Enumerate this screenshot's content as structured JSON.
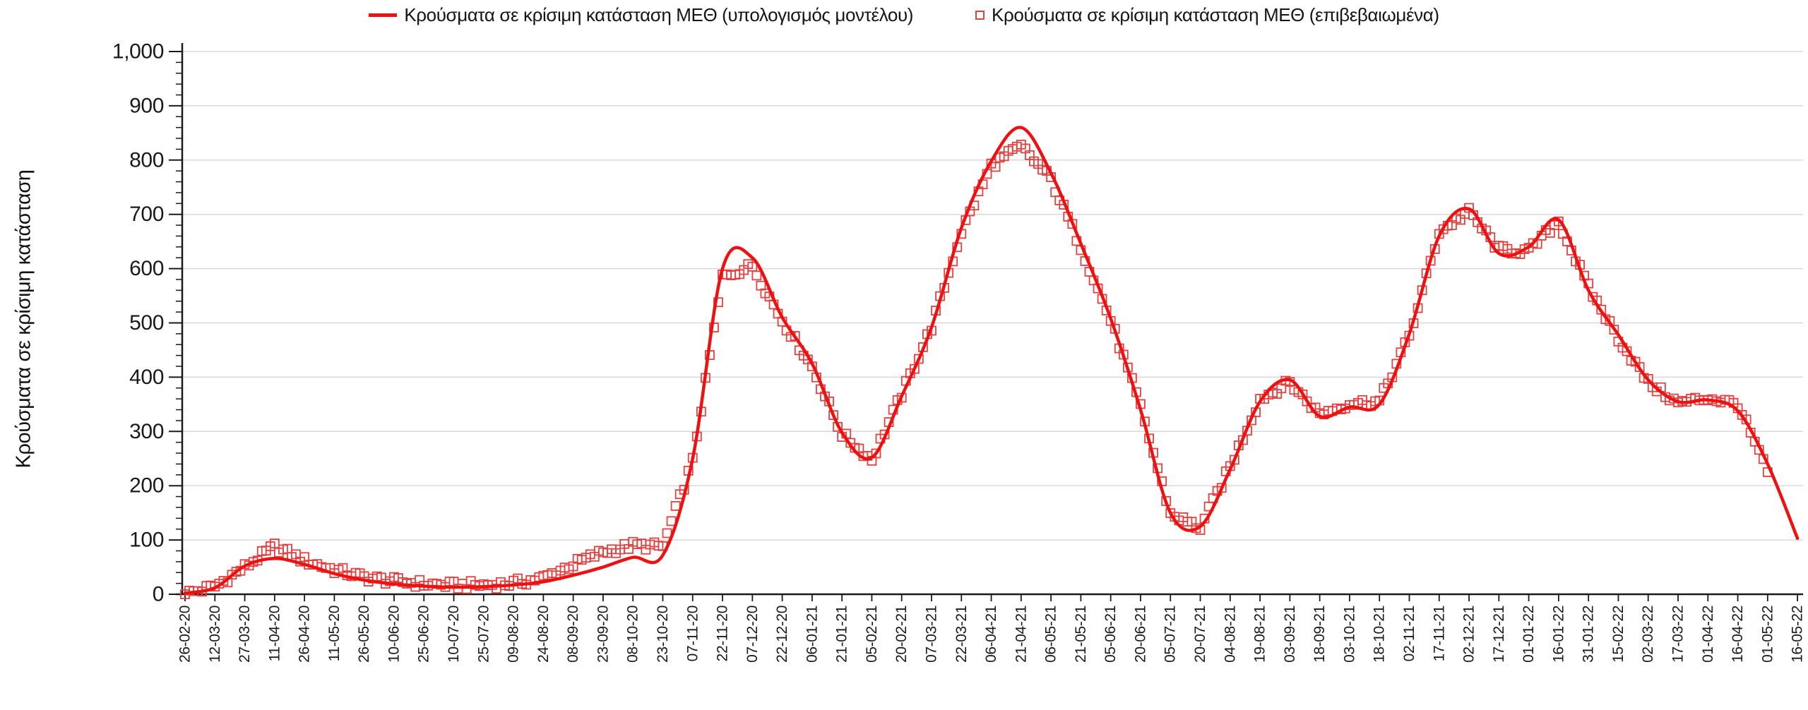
{
  "legend": {
    "model_label": "Κρούσματα σε κρίσιμη κατάσταση ΜΕΘ (υπολογισμός μοντέλου)",
    "confirmed_label": "Κρούσματα σε κρίσιμη κατάσταση ΜΕΘ (επιβεβαιωμένα)"
  },
  "y_axis": {
    "title": "Κρούσματα σε κρίσιμη κατάσταση",
    "tick_labels": [
      "0",
      "100",
      "200",
      "300",
      "400",
      "500",
      "600",
      "700",
      "800",
      "900",
      "1,000"
    ]
  },
  "colors": {
    "model_line": "#ee1111",
    "confirmed_marker": "#e34040",
    "gridline": "#d9d9d9",
    "axis": "#1a1a1a",
    "tick_text": "#1a1a1a"
  },
  "chart_data": {
    "type": "line",
    "title": "",
    "xlabel": "",
    "ylabel": "Κρούσματα σε κρίσιμη κατάσταση",
    "ylim": [
      0,
      1000
    ],
    "y_major_step": 100,
    "y_minor_step": 20,
    "grid": "horizontal",
    "legend_position": "top",
    "categories": [
      "26-02-20",
      "12-03-20",
      "27-03-20",
      "11-04-20",
      "26-04-20",
      "11-05-20",
      "26-05-20",
      "10-06-20",
      "25-06-20",
      "10-07-20",
      "25-07-20",
      "09-08-20",
      "24-08-20",
      "08-09-20",
      "23-09-20",
      "08-10-20",
      "23-10-20",
      "07-11-20",
      "22-11-20",
      "07-12-20",
      "22-12-20",
      "06-01-21",
      "21-01-21",
      "05-02-21",
      "20-02-21",
      "07-03-21",
      "22-03-21",
      "06-04-21",
      "21-04-21",
      "06-05-21",
      "21-05-21",
      "05-06-21",
      "20-06-21",
      "05-07-21",
      "20-07-21",
      "04-08-21",
      "19-08-21",
      "03-09-21",
      "18-09-21",
      "03-10-21",
      "18-10-21",
      "02-11-21",
      "17-11-21",
      "02-12-21",
      "17-12-21",
      "01-01-22",
      "16-01-22",
      "31-01-22",
      "15-02-22",
      "02-03-22",
      "17-03-22",
      "01-04-22",
      "16-04-22",
      "01-05-22",
      "16-05-22"
    ],
    "series": [
      {
        "name": "Κρούσματα σε κρίσιμη κατάσταση ΜΕΘ (υπολογισμός μοντέλου)",
        "style": "line",
        "color": "#ee1111",
        "values": [
          2,
          12,
          52,
          66,
          55,
          38,
          26,
          19,
          15,
          13,
          14,
          17,
          23,
          35,
          50,
          68,
          72,
          250,
          600,
          620,
          510,
          425,
          298,
          252,
          365,
          492,
          675,
          798,
          860,
          776,
          646,
          508,
          340,
          150,
          125,
          230,
          355,
          395,
          328,
          345,
          350,
          480,
          660,
          710,
          628,
          640,
          690,
          560,
          478,
          395,
          355,
          358,
          338,
          240,
          103
        ]
      },
      {
        "name": "Κρούσματα σε κρίσιμη κατάσταση ΜΕΘ (επιβεβαιωμένα)",
        "style": "square-markers",
        "color": "#e34040",
        "values": [
          1,
          14,
          50,
          88,
          62,
          45,
          31,
          24,
          19,
          16,
          17,
          20,
          30,
          55,
          78,
          90,
          88,
          245,
          585,
          605,
          505,
          420,
          295,
          248,
          368,
          492,
          668,
          790,
          825,
          765,
          640,
          505,
          345,
          148,
          122,
          235,
          360,
          390,
          332,
          352,
          355,
          475,
          668,
          705,
          635,
          632,
          688,
          565,
          472,
          390,
          352,
          362,
          350,
          225,
          null
        ]
      }
    ]
  }
}
